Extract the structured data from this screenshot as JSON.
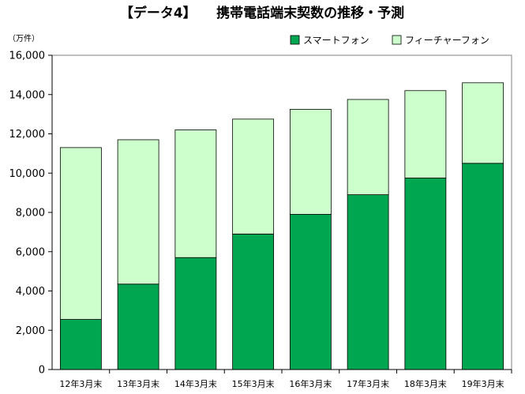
{
  "chart_data": {
    "type": "bar",
    "stacked": true,
    "title": "【データ4】　　携帯電話端末契数の推移・予測",
    "y_unit": "（万件）",
    "ylim": [
      0,
      16000
    ],
    "y_ticks": [
      "0",
      "2,000",
      "4,000",
      "6,000",
      "8,000",
      "10,000",
      "12,000",
      "14,000",
      "16,000"
    ],
    "categories": [
      "12年3月末",
      "13年3月末",
      "14年3月末",
      "15年3月末",
      "16年3月末",
      "17年3月末",
      "18年3月末",
      "19年3月末"
    ],
    "series": [
      {
        "name": "スマートフォン",
        "color": "#00a650",
        "values": [
          2550,
          4350,
          5700,
          6900,
          7900,
          8900,
          9750,
          10500
        ]
      },
      {
        "name": "フィーチャーフォン",
        "color": "#ccffcc",
        "values": [
          8750,
          7350,
          6500,
          5850,
          5350,
          4850,
          4450,
          4100
        ]
      }
    ],
    "legend_position": "top-right",
    "grid": false
  }
}
